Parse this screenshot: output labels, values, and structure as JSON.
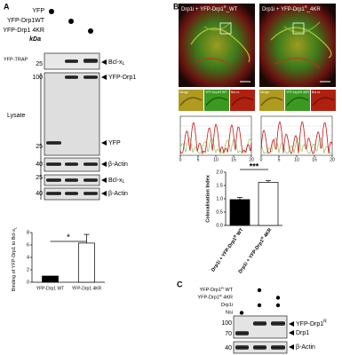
{
  "panel_a": {
    "label": "A",
    "conditions": [
      "YFP",
      "YFP-Drp1WT",
      "YFP-Drp1 4KR"
    ],
    "dots": [
      [
        true,
        false,
        false
      ],
      [
        false,
        true,
        false
      ],
      [
        false,
        false,
        true
      ]
    ],
    "kda": "kDa",
    "trap_label": "YFP-TRAP",
    "lysate_label": "Lysate",
    "markers": [
      25,
      100,
      25,
      40,
      25,
      40
    ],
    "bands": {
      "bcl_trap": {
        "text": "Bcl-x",
        "sub": "L"
      },
      "yfp_drp1": "YFP-Drp1",
      "yfp": "YFP",
      "actin1": "β-Actin",
      "bcl_lysate": {
        "text": "Bcl-x",
        "sub": "L"
      },
      "actin2": "β-Actin"
    },
    "chart": {
      "type": "bar",
      "ylabel": {
        "text": "Binding of YFP-Drp1 to Bcl-x",
        "sub": "L"
      },
      "categories": [
        "YFP-Drp1 WT",
        "YFP-Drp1 4KR"
      ],
      "values": [
        1,
        6.3
      ],
      "errors": [
        0,
        1.4
      ],
      "colors": [
        "#000000",
        "#ffffff"
      ],
      "ylim": [
        0,
        8
      ],
      "yticks": [
        0,
        2,
        4,
        6,
        8
      ],
      "significance": "*"
    }
  },
  "panel_b": {
    "label": "B",
    "images": [
      {
        "pre": "Drp1i + YFP-Drp1",
        "sup": "R",
        "post": "_WT"
      },
      {
        "pre": "Drp1i + YFP-Drp1",
        "sup": "R",
        "post": "_4KR"
      }
    ],
    "insets": [
      [
        "Merge",
        "YFP-Drp1R WT",
        "Bcl-xL"
      ],
      [
        "Merge",
        "YFP-Drp1R 4KR",
        "Bcl-xL"
      ]
    ],
    "profile_xticks": [
      0,
      5,
      10,
      15,
      20
    ],
    "chart": {
      "type": "bar",
      "ylabel": "Colocalisation Index",
      "categories": [
        {
          "pre": "Drp1i + YFP-Drp1",
          "sup": "R",
          "post": " WT"
        },
        {
          "pre": "Drp1i + YFP-Drp1",
          "sup": "R",
          "post": " 4KR"
        }
      ],
      "values": [
        0.97,
        1.62
      ],
      "errors": [
        0.08,
        0.06
      ],
      "colors": [
        "#000000",
        "#ffffff"
      ],
      "ylim": [
        0,
        2
      ],
      "yticks": [
        {
          "value": 0,
          "label": "0.0"
        },
        {
          "value": 0.5,
          "label": "0.5"
        },
        {
          "value": 1,
          "label": "1.0"
        },
        {
          "value": 1.5,
          "label": "1.5"
        },
        {
          "value": 2,
          "label": "2.0"
        }
      ],
      "significance": "***"
    }
  },
  "panel_c": {
    "label": "C",
    "conditions": [
      {
        "pre": "YFP-Drp1",
        "sup": "R",
        "post": " WT"
      },
      {
        "pre": "YFP-Drp1",
        "sup": "R",
        "post": " 4KR"
      },
      {
        "pre": "Drp1i"
      },
      {
        "pre": "Nsi"
      }
    ],
    "dots": [
      [
        false,
        true,
        false
      ],
      [
        false,
        false,
        true
      ],
      [
        false,
        true,
        true
      ],
      [
        true,
        false,
        false
      ]
    ],
    "markers": [
      100,
      70,
      40
    ],
    "bands": {
      "yfp_drp1": {
        "pre": "YFP-Drp1",
        "sup": "R"
      },
      "drp1": "Drp1",
      "actin": "β-Actin"
    }
  }
}
